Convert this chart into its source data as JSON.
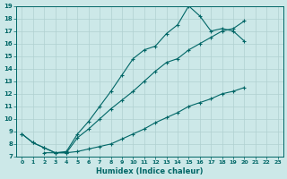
{
  "xlabel": "Humidex (Indice chaleur)",
  "bg_color": "#cce8e8",
  "line_color": "#006666",
  "grid_color": "#b0d0d0",
  "xlim": [
    -0.5,
    23.5
  ],
  "ylim": [
    7,
    19
  ],
  "xticks": [
    0,
    1,
    2,
    3,
    4,
    5,
    6,
    7,
    8,
    9,
    10,
    11,
    12,
    13,
    14,
    15,
    16,
    17,
    18,
    19,
    20,
    21,
    22,
    23
  ],
  "yticks": [
    7,
    8,
    9,
    10,
    11,
    12,
    13,
    14,
    15,
    16,
    17,
    18,
    19
  ],
  "line1_x": [
    0,
    1,
    2,
    3,
    4,
    5,
    6,
    7,
    8,
    9,
    10,
    11,
    12,
    13,
    14,
    15,
    16,
    17,
    18,
    19,
    20
  ],
  "line1_y": [
    8.8,
    8.1,
    7.7,
    7.3,
    7.4,
    8.8,
    9.8,
    11.0,
    12.2,
    13.5,
    14.8,
    15.5,
    15.8,
    16.8,
    17.5,
    19.0,
    18.2,
    17.0,
    17.2,
    17.0,
    16.2
  ],
  "line2_x": [
    0,
    1,
    2,
    3,
    4,
    5,
    6,
    7,
    8,
    9,
    10,
    11,
    12,
    13,
    14,
    15,
    16,
    17,
    18,
    19,
    20
  ],
  "line2_y": [
    8.8,
    8.1,
    7.7,
    7.3,
    7.3,
    8.5,
    9.2,
    10.0,
    10.8,
    11.5,
    12.2,
    13.0,
    13.8,
    14.5,
    14.8,
    15.5,
    16.0,
    16.5,
    17.0,
    17.2,
    17.8
  ],
  "line3_x": [
    2,
    3,
    4,
    5,
    6,
    7,
    8,
    9,
    10,
    11,
    12,
    13,
    14,
    15,
    16,
    17,
    18,
    19,
    20
  ],
  "line3_y": [
    7.3,
    7.3,
    7.3,
    7.4,
    7.6,
    7.8,
    8.0,
    8.4,
    8.8,
    9.2,
    9.7,
    10.1,
    10.5,
    11.0,
    11.3,
    11.6,
    12.0,
    12.2,
    12.5
  ]
}
